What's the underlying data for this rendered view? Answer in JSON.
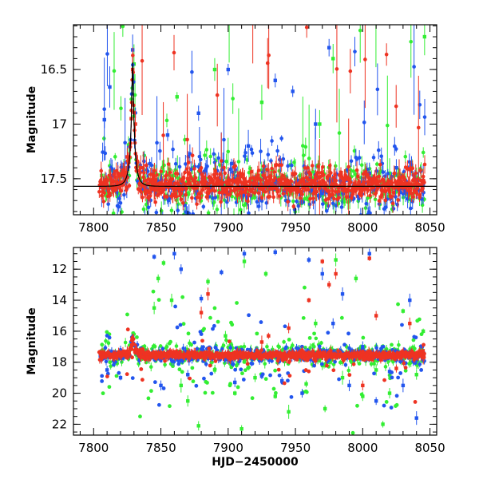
{
  "chart_data": [
    {
      "type": "scatter",
      "xlabel": "",
      "ylabel": "Magnitude",
      "xlim": [
        7785,
        8055
      ],
      "ylim": [
        17.83,
        16.09
      ],
      "y_inverted": true,
      "x_ticks": [
        "7800",
        "7850",
        "7900",
        "7950",
        "8000",
        "8050"
      ],
      "y_ticks": [
        "16.5",
        "17",
        "17.5"
      ],
      "grid": false,
      "legend": "none",
      "series": [
        {
          "color": "#33ee33",
          "description_points": [
            [
              7806,
              17.47
            ],
            [
              7808,
              17.55
            ],
            [
              7812,
              17.5
            ],
            [
              7816,
              17.52
            ],
            [
              7822,
              17.45
            ],
            [
              7830,
              16.45
            ],
            [
              7838,
              17.5
            ],
            [
              7855,
              17.45
            ],
            [
              7862,
              16.75
            ],
            [
              7875,
              17.55
            ],
            [
              7890,
              16.5
            ],
            [
              7905,
              17.5
            ],
            [
              7925,
              16.8
            ],
            [
              7950,
              17.5
            ],
            [
              7968,
              17.0
            ],
            [
              7978,
              16.4
            ],
            [
              7990,
              17.5
            ],
            [
              8020,
              17.45
            ],
            [
              8040,
              17.5
            ],
            [
              8046,
              16.2
            ]
          ]
        },
        {
          "color": "#2255ee",
          "description_points": [
            [
              7806,
              17.58
            ],
            [
              7808,
              16.96
            ],
            [
              7812,
              16.66
            ],
            [
              7818,
              17.52
            ],
            [
              7825,
              17.35
            ],
            [
              7829,
              16.32
            ],
            [
              7840,
              17.6
            ],
            [
              7855,
              17.1
            ],
            [
              7878,
              16.9
            ],
            [
              7900,
              16.5
            ],
            [
              7915,
              17.2
            ],
            [
              7935,
              16.6
            ],
            [
              7948,
              16.7
            ],
            [
              7965,
              17.0
            ],
            [
              7975,
              16.3
            ],
            [
              7985,
              17.6
            ],
            [
              8005,
              17.45
            ],
            [
              8025,
              17.4
            ],
            [
              8040,
              17.6
            ],
            [
              8045,
              17.55
            ]
          ]
        },
        {
          "color": "#ee3322",
          "description_points": [
            [
              7806,
              17.54
            ],
            [
              7810,
              17.56
            ],
            [
              7815,
              17.52
            ],
            [
              7820,
              17.46
            ],
            [
              7825,
              17.3
            ],
            [
              7828,
              16.95
            ],
            [
              7829,
              16.5
            ],
            [
              7831,
              17.0
            ],
            [
              7835,
              17.4
            ],
            [
              7845,
              17.55
            ],
            [
              7870,
              17.5
            ],
            [
              7900,
              17.55
            ],
            [
              7930,
              17.52
            ],
            [
              7960,
              17.55
            ],
            [
              7985,
              17.5
            ],
            [
              8010,
              17.53
            ],
            [
              8035,
              17.55
            ],
            [
              8045,
              17.52
            ]
          ]
        }
      ],
      "model_curve": [
        [
          7785,
          17.55
        ],
        [
          7815,
          17.52
        ],
        [
          7822,
          17.44
        ],
        [
          7826,
          17.25
        ],
        [
          7828.5,
          16.75
        ],
        [
          7829.5,
          16.6
        ],
        [
          7831,
          16.95
        ],
        [
          7834,
          17.32
        ],
        [
          7840,
          17.45
        ],
        [
          7860,
          17.52
        ],
        [
          7900,
          17.54
        ],
        [
          8055,
          17.55
        ]
      ]
    },
    {
      "type": "scatter",
      "xlabel": "HJD−2450000",
      "ylabel": "Magnitude",
      "xlim": [
        7785,
        8055
      ],
      "ylim": [
        22.7,
        10.6
      ],
      "y_inverted": true,
      "x_ticks": [
        "7800",
        "7850",
        "7900",
        "7950",
        "8000",
        "8050"
      ],
      "y_ticks": [
        "12",
        "14",
        "16",
        "18",
        "20",
        "22"
      ],
      "grid": false,
      "legend": "none",
      "series": [
        {
          "color": "#33ee33",
          "description_points": [
            [
              7845,
              14.5
            ],
            [
              7848,
              12.6
            ],
            [
              7852,
              11.6
            ],
            [
              7858,
              14.0
            ],
            [
              7865,
              19.5
            ],
            [
              7870,
              20.5
            ],
            [
              7878,
              22.1
            ],
            [
              7885,
              12.8
            ],
            [
              7890,
              18.5
            ],
            [
              7898,
              16.3
            ],
            [
              7905,
              20.0
            ],
            [
              7910,
              22.3
            ],
            [
              7912,
              11.5
            ],
            [
              7920,
              19.0
            ],
            [
              7928,
              12.3
            ],
            [
              7935,
              20.2
            ],
            [
              7945,
              21.2
            ],
            [
              7958,
              19.4
            ],
            [
              7965,
              15.5
            ],
            [
              7972,
              21.0
            ],
            [
              7980,
              11.4
            ],
            [
              7985,
              19.0
            ],
            [
              7995,
              12.6
            ],
            [
              8000,
              20.2
            ],
            [
              8010,
              18.5
            ],
            [
              8015,
              22.0
            ],
            [
              8020,
              20.0
            ],
            [
              8030,
              14.7
            ],
            [
              8040,
              18.8
            ],
            [
              8045,
              16.0
            ]
          ]
        },
        {
          "color": "#2255ee",
          "description_points": [
            [
              7805,
              17.6
            ],
            [
              7810,
              18.5
            ],
            [
              7820,
              19.0
            ],
            [
              7845,
              11.2
            ],
            [
              7850,
              19.5
            ],
            [
              7860,
              11.0
            ],
            [
              7865,
              12.0
            ],
            [
              7870,
              18.8
            ],
            [
              7880,
              13.9
            ],
            [
              7895,
              12.2
            ],
            [
              7905,
              19.3
            ],
            [
              7912,
              11.0
            ],
            [
              7925,
              18.9
            ],
            [
              7935,
              10.9
            ],
            [
              7940,
              19.2
            ],
            [
              7955,
              20.0
            ],
            [
              7960,
              11.4
            ],
            [
              7970,
              12.3
            ],
            [
              7978,
              15.5
            ],
            [
              7985,
              13.6
            ],
            [
              7990,
              19.5
            ],
            [
              8000,
              17.0
            ],
            [
              8005,
              11.0
            ],
            [
              8010,
              20.5
            ],
            [
              8020,
              18.6
            ],
            [
              8030,
              19.5
            ],
            [
              8035,
              14.0
            ],
            [
              8040,
              21.6
            ]
          ]
        },
        {
          "color": "#ee3322",
          "description_points": [
            [
              7806,
              17.7
            ],
            [
              7815,
              17.6
            ],
            [
              7825,
              17.3
            ],
            [
              7829,
              16.5
            ],
            [
              7832,
              17.2
            ],
            [
              7840,
              17.7
            ],
            [
              7870,
              17.6
            ],
            [
              7880,
              14.8
            ],
            [
              7885,
              13.6
            ],
            [
              7900,
              17.7
            ],
            [
              7925,
              16.7
            ],
            [
              7930,
              16.3
            ],
            [
              7945,
              15.8
            ],
            [
              7960,
              14.0
            ],
            [
              7965,
              17.9
            ],
            [
              7970,
              11.5
            ],
            [
              7975,
              13.0
            ],
            [
              7980,
              12.3
            ],
            [
              7990,
              17.6
            ],
            [
              8000,
              19.5
            ],
            [
              8005,
              11.3
            ],
            [
              8010,
              15.0
            ],
            [
              8015,
              17.7
            ],
            [
              8025,
              18.4
            ],
            [
              8035,
              15.5
            ],
            [
              8045,
              17.7
            ]
          ]
        }
      ]
    }
  ]
}
